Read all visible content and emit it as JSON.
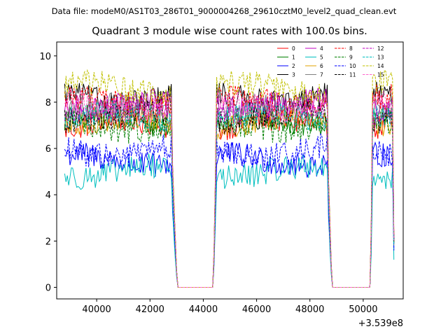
{
  "chart_data": {
    "type": "line",
    "suptitle": "Data file: modeM0/AS1T03_286T01_9000004268_29610cztM0_level2_quad_clean.evt",
    "title": "Quadrant 3 module wise count rates with 100.0s bins.",
    "xlabel": "",
    "ylabel": "",
    "x_offset_label": "+3.539e8",
    "xlim": [
      38500,
      51500
    ],
    "ylim": [
      -0.5,
      10.6
    ],
    "x_ticks": [
      40000,
      42000,
      44000,
      46000,
      48000,
      50000
    ],
    "x_tick_labels": [
      "40000",
      "42000",
      "44000",
      "46000",
      "48000",
      "50000"
    ],
    "y_ticks": [
      0,
      2,
      4,
      6,
      8,
      10
    ],
    "y_tick_labels": [
      "0",
      "2",
      "4",
      "6",
      "8",
      "10"
    ],
    "legend_position": "top-right",
    "segments": [
      {
        "start": 38800,
        "end": 43000,
        "step": 50,
        "ramp_out": 4
      },
      {
        "start": 43000,
        "end": 44400,
        "flat": 0
      },
      {
        "start": 44400,
        "end": 48800,
        "step": 50,
        "ramp_in": 2,
        "ramp_out": 3
      },
      {
        "start": 48800,
        "end": 50300,
        "flat": 0
      },
      {
        "start": 50300,
        "end": 51150,
        "step": 50,
        "ramp_in": 1,
        "ramp_out": 1
      }
    ],
    "series": [
      {
        "name": "0",
        "color": "#ff0000",
        "dash": "solid",
        "level": 7.0
      },
      {
        "name": "1",
        "color": "#008000",
        "dash": "solid",
        "level": 7.2
      },
      {
        "name": "2",
        "color": "#0000ff",
        "dash": "solid",
        "level": 5.5
      },
      {
        "name": "3",
        "color": "#000000",
        "dash": "solid",
        "level": 8.2
      },
      {
        "name": "4",
        "color": "#c000c0",
        "dash": "solid",
        "level": 7.9
      },
      {
        "name": "5",
        "color": "#00bfbf",
        "dash": "solid",
        "level": 5.0
      },
      {
        "name": "6",
        "color": "#e0a000",
        "dash": "solid",
        "level": 7.1
      },
      {
        "name": "7",
        "color": "#808080",
        "dash": "solid",
        "level": 7.6
      },
      {
        "name": "8",
        "color": "#ff0000",
        "dash": "dashed",
        "level": 8.0
      },
      {
        "name": "9",
        "color": "#008000",
        "dash": "dashed",
        "level": 7.0
      },
      {
        "name": "10",
        "color": "#0000ff",
        "dash": "dashed",
        "level": 5.9
      },
      {
        "name": "11",
        "color": "#000000",
        "dash": "dashed",
        "level": 7.4
      },
      {
        "name": "12",
        "color": "#c000c0",
        "dash": "dashed",
        "level": 7.7
      },
      {
        "name": "13",
        "color": "#00bfbf",
        "dash": "dashed",
        "level": 7.3
      },
      {
        "name": "14",
        "color": "#c0c000",
        "dash": "dashed",
        "level": 8.6
      },
      {
        "name": "15",
        "color": "#ff66cc",
        "dash": "dashed",
        "level": 7.8
      }
    ]
  }
}
